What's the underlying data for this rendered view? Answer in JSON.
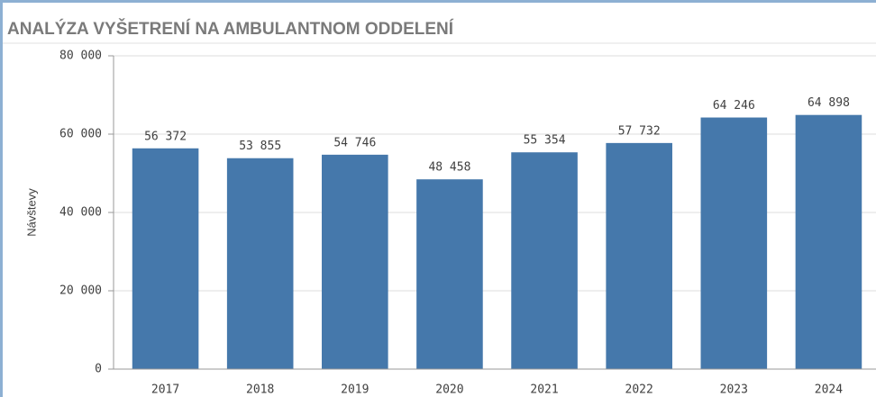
{
  "chart_data": {
    "type": "bar",
    "title": "ANALÝZA VYŠETRENÍ NA AMBULANTNOM ODDELENÍ",
    "y_label": "Návštevy",
    "categories": [
      "2017",
      "2018",
      "2019",
      "2020",
      "2021",
      "2022",
      "2023",
      "2024"
    ],
    "values": [
      56372,
      53855,
      54746,
      48458,
      55354,
      57732,
      64246,
      64898
    ],
    "value_labels": [
      "56 372",
      "53 855",
      "54 746",
      "48 458",
      "55 354",
      "57 732",
      "64 246",
      "64 898"
    ],
    "color": "#4578ab",
    "ylim": [
      0,
      80000
    ],
    "yticks": [
      0,
      {
        "value": 20000,
        "label": "20 000"
      },
      {
        "value": 40000,
        "label": "40 000"
      },
      {
        "value": 60000,
        "label": "60 000"
      },
      {
        "value": 80000,
        "label": "80 000"
      }
    ],
    "grid": true
  }
}
